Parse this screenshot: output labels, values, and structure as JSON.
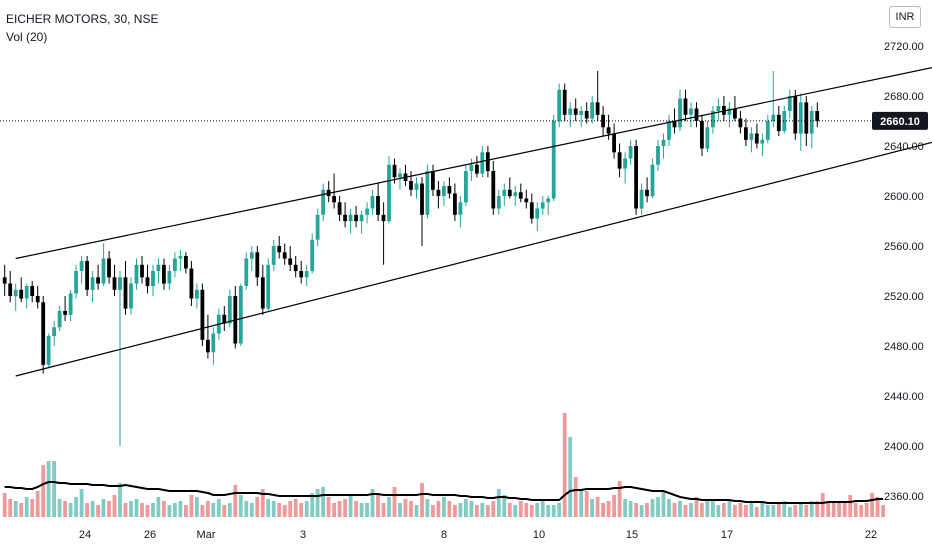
{
  "header": {
    "symbol_line": "EICHER MOTORS, 30, NSE",
    "indicator_line": "Vol (20)",
    "currency": "INR"
  },
  "colors": {
    "up": "#26a69a",
    "down": "#000000",
    "vol_up": "#80cbc4",
    "vol_down": "#ef9a9a",
    "trendline": "#000000",
    "axis_text": "#131722",
    "price_line": "#000000"
  },
  "chart_data": {
    "type": "candlestick",
    "title": "EICHER MOTORS, 30, NSE",
    "y_axis": {
      "side": "right",
      "ylim": [
        2340,
        2740
      ],
      "ticks": [
        "2720.00",
        "2680.00",
        "2640.00",
        "2600.00",
        "2560.00",
        "2520.00",
        "2480.00",
        "2440.00",
        "2400.00",
        "2360.00"
      ]
    },
    "x_axis": {
      "ticks": [
        "24",
        "26",
        "Mar",
        "3",
        "8",
        "10",
        "15",
        "17",
        "22"
      ]
    },
    "last_price": 2660.1,
    "last_price_label": "2660.10",
    "grid": false,
    "candles": [
      {
        "o": 2535,
        "h": 2545,
        "l": 2520,
        "c": 2530
      },
      {
        "o": 2530,
        "h": 2540,
        "l": 2515,
        "c": 2520
      },
      {
        "o": 2520,
        "h": 2530,
        "l": 2508,
        "c": 2525
      },
      {
        "o": 2525,
        "h": 2535,
        "l": 2515,
        "c": 2518
      },
      {
        "o": 2518,
        "h": 2530,
        "l": 2510,
        "c": 2528
      },
      {
        "o": 2528,
        "h": 2532,
        "l": 2515,
        "c": 2520
      },
      {
        "o": 2520,
        "h": 2528,
        "l": 2510,
        "c": 2515
      },
      {
        "o": 2515,
        "h": 2520,
        "l": 2458,
        "c": 2465
      },
      {
        "o": 2465,
        "h": 2490,
        "l": 2462,
        "c": 2488
      },
      {
        "o": 2488,
        "h": 2500,
        "l": 2480,
        "c": 2495
      },
      {
        "o": 2495,
        "h": 2512,
        "l": 2492,
        "c": 2508
      },
      {
        "o": 2508,
        "h": 2520,
        "l": 2500,
        "c": 2505
      },
      {
        "o": 2505,
        "h": 2525,
        "l": 2500,
        "c": 2522
      },
      {
        "o": 2522,
        "h": 2545,
        "l": 2518,
        "c": 2540
      },
      {
        "o": 2540,
        "h": 2552,
        "l": 2530,
        "c": 2548
      },
      {
        "o": 2548,
        "h": 2552,
        "l": 2520,
        "c": 2525
      },
      {
        "o": 2525,
        "h": 2540,
        "l": 2515,
        "c": 2535
      },
      {
        "o": 2535,
        "h": 2545,
        "l": 2525,
        "c": 2530
      },
      {
        "o": 2530,
        "h": 2562,
        "l": 2528,
        "c": 2550
      },
      {
        "o": 2550,
        "h": 2556,
        "l": 2530,
        "c": 2535
      },
      {
        "o": 2535,
        "h": 2545,
        "l": 2520,
        "c": 2525
      },
      {
        "o": 2525,
        "h": 2540,
        "l": 2400,
        "c": 2535
      },
      {
        "o": 2535,
        "h": 2548,
        "l": 2505,
        "c": 2510
      },
      {
        "o": 2510,
        "h": 2535,
        "l": 2505,
        "c": 2530
      },
      {
        "o": 2530,
        "h": 2550,
        "l": 2525,
        "c": 2545
      },
      {
        "o": 2545,
        "h": 2552,
        "l": 2530,
        "c": 2535
      },
      {
        "o": 2535,
        "h": 2545,
        "l": 2522,
        "c": 2528
      },
      {
        "o": 2528,
        "h": 2545,
        "l": 2520,
        "c": 2540
      },
      {
        "o": 2540,
        "h": 2550,
        "l": 2530,
        "c": 2545
      },
      {
        "o": 2545,
        "h": 2550,
        "l": 2525,
        "c": 2530
      },
      {
        "o": 2530,
        "h": 2545,
        "l": 2525,
        "c": 2540
      },
      {
        "o": 2540,
        "h": 2555,
        "l": 2535,
        "c": 2550
      },
      {
        "o": 2550,
        "h": 2557,
        "l": 2540,
        "c": 2552
      },
      {
        "o": 2552,
        "h": 2555,
        "l": 2538,
        "c": 2542
      },
      {
        "o": 2542,
        "h": 2548,
        "l": 2512,
        "c": 2518
      },
      {
        "o": 2518,
        "h": 2530,
        "l": 2510,
        "c": 2525
      },
      {
        "o": 2525,
        "h": 2530,
        "l": 2480,
        "c": 2485
      },
      {
        "o": 2485,
        "h": 2505,
        "l": 2470,
        "c": 2475
      },
      {
        "o": 2475,
        "h": 2495,
        "l": 2465,
        "c": 2490
      },
      {
        "o": 2490,
        "h": 2510,
        "l": 2485,
        "c": 2505
      },
      {
        "o": 2505,
        "h": 2512,
        "l": 2492,
        "c": 2498
      },
      {
        "o": 2498,
        "h": 2525,
        "l": 2495,
        "c": 2520
      },
      {
        "o": 2520,
        "h": 2528,
        "l": 2478,
        "c": 2482
      },
      {
        "o": 2482,
        "h": 2530,
        "l": 2480,
        "c": 2528
      },
      {
        "o": 2528,
        "h": 2555,
        "l": 2525,
        "c": 2550
      },
      {
        "o": 2550,
        "h": 2560,
        "l": 2540,
        "c": 2555
      },
      {
        "o": 2555,
        "h": 2560,
        "l": 2528,
        "c": 2535
      },
      {
        "o": 2535,
        "h": 2545,
        "l": 2505,
        "c": 2510
      },
      {
        "o": 2510,
        "h": 2550,
        "l": 2508,
        "c": 2545
      },
      {
        "o": 2545,
        "h": 2565,
        "l": 2540,
        "c": 2560
      },
      {
        "o": 2560,
        "h": 2568,
        "l": 2550,
        "c": 2555
      },
      {
        "o": 2555,
        "h": 2562,
        "l": 2545,
        "c": 2550
      },
      {
        "o": 2550,
        "h": 2560,
        "l": 2540,
        "c": 2545
      },
      {
        "o": 2545,
        "h": 2552,
        "l": 2535,
        "c": 2540
      },
      {
        "o": 2540,
        "h": 2548,
        "l": 2530,
        "c": 2535
      },
      {
        "o": 2535,
        "h": 2545,
        "l": 2528,
        "c": 2540
      },
      {
        "o": 2540,
        "h": 2570,
        "l": 2538,
        "c": 2565
      },
      {
        "o": 2565,
        "h": 2590,
        "l": 2560,
        "c": 2585
      },
      {
        "o": 2585,
        "h": 2610,
        "l": 2580,
        "c": 2605
      },
      {
        "o": 2605,
        "h": 2612,
        "l": 2595,
        "c": 2600
      },
      {
        "o": 2600,
        "h": 2618,
        "l": 2590,
        "c": 2595
      },
      {
        "o": 2595,
        "h": 2600,
        "l": 2580,
        "c": 2585
      },
      {
        "o": 2585,
        "h": 2595,
        "l": 2575,
        "c": 2580
      },
      {
        "o": 2580,
        "h": 2590,
        "l": 2570,
        "c": 2585
      },
      {
        "o": 2585,
        "h": 2592,
        "l": 2575,
        "c": 2580
      },
      {
        "o": 2580,
        "h": 2588,
        "l": 2570,
        "c": 2585
      },
      {
        "o": 2585,
        "h": 2595,
        "l": 2578,
        "c": 2590
      },
      {
        "o": 2590,
        "h": 2605,
        "l": 2585,
        "c": 2600
      },
      {
        "o": 2600,
        "h": 2610,
        "l": 2580,
        "c": 2585
      },
      {
        "o": 2585,
        "h": 2595,
        "l": 2545,
        "c": 2580
      },
      {
        "o": 2580,
        "h": 2632,
        "l": 2578,
        "c": 2625
      },
      {
        "o": 2625,
        "h": 2630,
        "l": 2610,
        "c": 2615
      },
      {
        "o": 2615,
        "h": 2622,
        "l": 2605,
        "c": 2618
      },
      {
        "o": 2618,
        "h": 2625,
        "l": 2608,
        "c": 2612
      },
      {
        "o": 2612,
        "h": 2620,
        "l": 2600,
        "c": 2605
      },
      {
        "o": 2605,
        "h": 2615,
        "l": 2598,
        "c": 2610
      },
      {
        "o": 2610,
        "h": 2615,
        "l": 2560,
        "c": 2585
      },
      {
        "o": 2585,
        "h": 2625,
        "l": 2582,
        "c": 2620
      },
      {
        "o": 2620,
        "h": 2625,
        "l": 2600,
        "c": 2605
      },
      {
        "o": 2605,
        "h": 2612,
        "l": 2590,
        "c": 2600
      },
      {
        "o": 2600,
        "h": 2612,
        "l": 2592,
        "c": 2608
      },
      {
        "o": 2608,
        "h": 2615,
        "l": 2598,
        "c": 2602
      },
      {
        "o": 2602,
        "h": 2610,
        "l": 2580,
        "c": 2585
      },
      {
        "o": 2585,
        "h": 2600,
        "l": 2575,
        "c": 2595
      },
      {
        "o": 2595,
        "h": 2625,
        "l": 2592,
        "c": 2620
      },
      {
        "o": 2620,
        "h": 2630,
        "l": 2612,
        "c": 2625
      },
      {
        "o": 2625,
        "h": 2632,
        "l": 2615,
        "c": 2618
      },
      {
        "o": 2618,
        "h": 2640,
        "l": 2615,
        "c": 2635
      },
      {
        "o": 2635,
        "h": 2640,
        "l": 2615,
        "c": 2620
      },
      {
        "o": 2620,
        "h": 2628,
        "l": 2585,
        "c": 2590
      },
      {
        "o": 2590,
        "h": 2605,
        "l": 2585,
        "c": 2600
      },
      {
        "o": 2600,
        "h": 2610,
        "l": 2592,
        "c": 2605
      },
      {
        "o": 2605,
        "h": 2615,
        "l": 2598,
        "c": 2600
      },
      {
        "o": 2600,
        "h": 2608,
        "l": 2592,
        "c": 2603
      },
      {
        "o": 2603,
        "h": 2610,
        "l": 2595,
        "c": 2598
      },
      {
        "o": 2598,
        "h": 2605,
        "l": 2590,
        "c": 2595
      },
      {
        "o": 2595,
        "h": 2602,
        "l": 2578,
        "c": 2582
      },
      {
        "o": 2582,
        "h": 2595,
        "l": 2572,
        "c": 2590
      },
      {
        "o": 2590,
        "h": 2600,
        "l": 2585,
        "c": 2595
      },
      {
        "o": 2595,
        "h": 2600,
        "l": 2585,
        "c": 2598
      },
      {
        "o": 2598,
        "h": 2665,
        "l": 2596,
        "c": 2660
      },
      {
        "o": 2660,
        "h": 2690,
        "l": 2655,
        "c": 2685
      },
      {
        "o": 2685,
        "h": 2690,
        "l": 2660,
        "c": 2665
      },
      {
        "o": 2665,
        "h": 2675,
        "l": 2655,
        "c": 2670
      },
      {
        "o": 2670,
        "h": 2678,
        "l": 2660,
        "c": 2665
      },
      {
        "o": 2665,
        "h": 2672,
        "l": 2655,
        "c": 2668
      },
      {
        "o": 2668,
        "h": 2675,
        "l": 2658,
        "c": 2662
      },
      {
        "o": 2662,
        "h": 2680,
        "l": 2658,
        "c": 2675
      },
      {
        "o": 2675,
        "h": 2700,
        "l": 2660,
        "c": 2665
      },
      {
        "o": 2665,
        "h": 2672,
        "l": 2648,
        "c": 2655
      },
      {
        "o": 2655,
        "h": 2665,
        "l": 2645,
        "c": 2650
      },
      {
        "o": 2650,
        "h": 2658,
        "l": 2630,
        "c": 2635
      },
      {
        "o": 2635,
        "h": 2642,
        "l": 2615,
        "c": 2622
      },
      {
        "o": 2622,
        "h": 2635,
        "l": 2610,
        "c": 2630
      },
      {
        "o": 2630,
        "h": 2645,
        "l": 2625,
        "c": 2640
      },
      {
        "o": 2640,
        "h": 2645,
        "l": 2585,
        "c": 2590
      },
      {
        "o": 2590,
        "h": 2610,
        "l": 2585,
        "c": 2605
      },
      {
        "o": 2605,
        "h": 2615,
        "l": 2595,
        "c": 2600
      },
      {
        "o": 2600,
        "h": 2630,
        "l": 2598,
        "c": 2625
      },
      {
        "o": 2625,
        "h": 2645,
        "l": 2620,
        "c": 2640
      },
      {
        "o": 2640,
        "h": 2650,
        "l": 2630,
        "c": 2645
      },
      {
        "o": 2645,
        "h": 2665,
        "l": 2640,
        "c": 2660
      },
      {
        "o": 2660,
        "h": 2670,
        "l": 2650,
        "c": 2655
      },
      {
        "o": 2655,
        "h": 2685,
        "l": 2652,
        "c": 2678
      },
      {
        "o": 2678,
        "h": 2685,
        "l": 2660,
        "c": 2665
      },
      {
        "o": 2665,
        "h": 2675,
        "l": 2655,
        "c": 2670
      },
      {
        "o": 2670,
        "h": 2675,
        "l": 2655,
        "c": 2660
      },
      {
        "o": 2660,
        "h": 2665,
        "l": 2632,
        "c": 2638
      },
      {
        "o": 2638,
        "h": 2660,
        "l": 2635,
        "c": 2655
      },
      {
        "o": 2655,
        "h": 2672,
        "l": 2650,
        "c": 2668
      },
      {
        "o": 2668,
        "h": 2678,
        "l": 2660,
        "c": 2672
      },
      {
        "o": 2672,
        "h": 2680,
        "l": 2660,
        "c": 2665
      },
      {
        "o": 2665,
        "h": 2675,
        "l": 2655,
        "c": 2670
      },
      {
        "o": 2670,
        "h": 2680,
        "l": 2660,
        "c": 2662
      },
      {
        "o": 2662,
        "h": 2668,
        "l": 2650,
        "c": 2655
      },
      {
        "o": 2655,
        "h": 2662,
        "l": 2640,
        "c": 2645
      },
      {
        "o": 2645,
        "h": 2655,
        "l": 2635,
        "c": 2650
      },
      {
        "o": 2650,
        "h": 2658,
        "l": 2638,
        "c": 2642
      },
      {
        "o": 2642,
        "h": 2650,
        "l": 2632,
        "c": 2645
      },
      {
        "o": 2645,
        "h": 2665,
        "l": 2642,
        "c": 2660
      },
      {
        "o": 2660,
        "h": 2700,
        "l": 2655,
        "c": 2665
      },
      {
        "o": 2665,
        "h": 2672,
        "l": 2648,
        "c": 2652
      },
      {
        "o": 2652,
        "h": 2672,
        "l": 2650,
        "c": 2668
      },
      {
        "o": 2668,
        "h": 2685,
        "l": 2662,
        "c": 2680
      },
      {
        "o": 2680,
        "h": 2685,
        "l": 2645,
        "c": 2650
      },
      {
        "o": 2650,
        "h": 2682,
        "l": 2636,
        "c": 2675
      },
      {
        "o": 2675,
        "h": 2680,
        "l": 2640,
        "c": 2650
      },
      {
        "o": 2650,
        "h": 2672,
        "l": 2638,
        "c": 2668
      },
      {
        "o": 2668,
        "h": 2675,
        "l": 2655,
        "c": 2660
      }
    ],
    "volume": {
      "label": "Vol (20)",
      "values": [
        24,
        18,
        16,
        14,
        20,
        18,
        26,
        52,
        56,
        56,
        18,
        16,
        14,
        20,
        28,
        14,
        16,
        12,
        18,
        16,
        22,
        34,
        14,
        16,
        18,
        14,
        12,
        14,
        20,
        16,
        12,
        14,
        16,
        12,
        22,
        20,
        12,
        16,
        14,
        18,
        12,
        14,
        32,
        22,
        16,
        14,
        20,
        28,
        18,
        16,
        14,
        12,
        16,
        18,
        14,
        16,
        24,
        28,
        30,
        20,
        14,
        16,
        18,
        22,
        16,
        14,
        14,
        28,
        22,
        14,
        20,
        30,
        14,
        18,
        16,
        12,
        34,
        18,
        12,
        16,
        20,
        16,
        12,
        14,
        18,
        16,
        12,
        14,
        12,
        16,
        28,
        22,
        14,
        12,
        16,
        14,
        12,
        14,
        16,
        12,
        12,
        14,
        104,
        80,
        40,
        28,
        26,
        18,
        20,
        14,
        16,
        22,
        36,
        18,
        16,
        14,
        12,
        14,
        18,
        20,
        26,
        18,
        14,
        16,
        12,
        14,
        20,
        14,
        18,
        16,
        12,
        14,
        16,
        12,
        14,
        12,
        16,
        10,
        14,
        12,
        12,
        14,
        16,
        10,
        12,
        14,
        12,
        16,
        16,
        24,
        14,
        16,
        14,
        16,
        22,
        14,
        12,
        14,
        24,
        20,
        12
      ],
      "ma_values": [
        30,
        30,
        29,
        29,
        28,
        28,
        30,
        33,
        35,
        35,
        34,
        34,
        33,
        33,
        33,
        33,
        32,
        32,
        32,
        31,
        31,
        31,
        32,
        31,
        30,
        29,
        28,
        28,
        28,
        27,
        26,
        26,
        26,
        26,
        26,
        26,
        25,
        24,
        22,
        22,
        22,
        23,
        24,
        24,
        24,
        24,
        24,
        23,
        23,
        22,
        21,
        21,
        21,
        21,
        21,
        21,
        21,
        21,
        22,
        22,
        22,
        22,
        22,
        22,
        22,
        22,
        22,
        23,
        23,
        22,
        22,
        22,
        22,
        22,
        22,
        22,
        23,
        23,
        22,
        22,
        22,
        22,
        22,
        21,
        21,
        20,
        20,
        20,
        19,
        19,
        20,
        20,
        19,
        19,
        18,
        18,
        17,
        17,
        17,
        17,
        17,
        17,
        22,
        26,
        27,
        27,
        28,
        28,
        28,
        28,
        28,
        29,
        29,
        30,
        30,
        29,
        28,
        27,
        26,
        26,
        26,
        24,
        22,
        20,
        19,
        18,
        18,
        17,
        17,
        17,
        17,
        17,
        17,
        16,
        16,
        15,
        15,
        15,
        15,
        14,
        14,
        14,
        14,
        14,
        14,
        14,
        14,
        14,
        14,
        14,
        15,
        15,
        15,
        15,
        15,
        16,
        16,
        16,
        17,
        18,
        18
      ],
      "up_pattern": "close>=open"
    },
    "trendlines": [
      {
        "name": "upper-channel",
        "from": {
          "bar": 2,
          "price": 2550
        },
        "to": {
          "bar": 184,
          "price": 2715
        }
      },
      {
        "name": "lower-channel",
        "from": {
          "bar": 2,
          "price": 2456
        },
        "to": {
          "bar": 184,
          "price": 2660
        }
      }
    ]
  }
}
